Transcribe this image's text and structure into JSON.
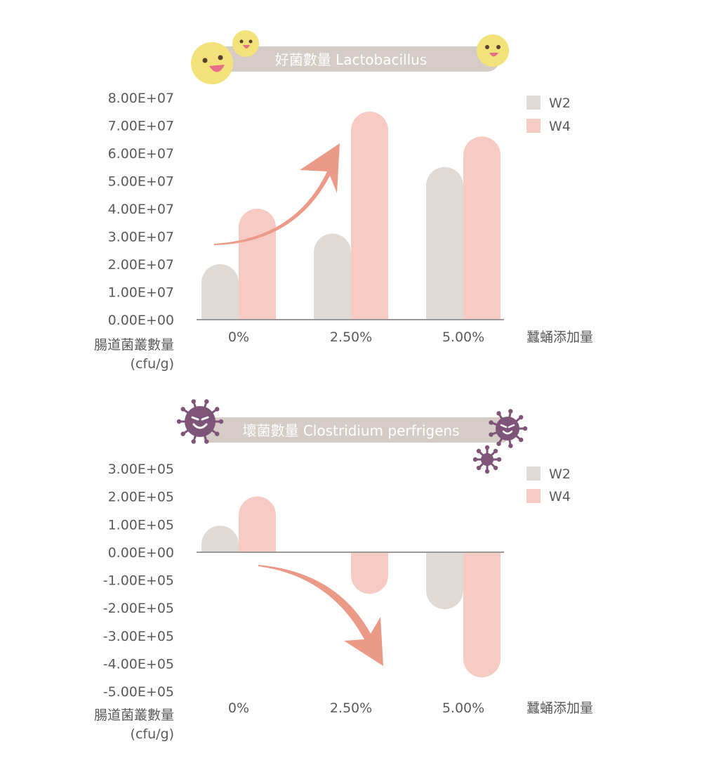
{
  "colors": {
    "w2": "#e0dad7",
    "w4": "#f5cbc3",
    "arrow": "#ec9a88",
    "banner": "#d5cbc7",
    "axis": "#9a9a9a",
    "smiley_face": "#f3e17a",
    "virus": "#7e5578"
  },
  "icons": {
    "good": "smiley-bacteria-icon",
    "bad": "virus-icon"
  },
  "chart_data": [
    {
      "type": "bar",
      "title": "好菌數量 Lactobacillus",
      "categories": [
        "0%",
        "2.50%",
        "5.00%"
      ],
      "xlabel": "蠶蛹添加量",
      "ylabel_line1": "腸道菌叢數量",
      "ylabel_line2": "(cfu/g)",
      "yticks": [
        "8.00E+07",
        "7.00E+07",
        "6.00E+07",
        "5.00E+07",
        "4.00E+07",
        "3.00E+07",
        "2.00E+07",
        "1.00E+07",
        "0.00E+00"
      ],
      "ylim": [
        0,
        80000000
      ],
      "legend_position": "top-right",
      "trend": "up",
      "series": [
        {
          "name": "W2",
          "values": [
            20000000,
            31000000,
            55000000
          ]
        },
        {
          "name": "W4",
          "values": [
            40000000,
            75000000,
            66000000
          ]
        }
      ]
    },
    {
      "type": "bar",
      "title": "壞菌數量 Clostridium perfrigens",
      "categories": [
        "0%",
        "2.50%",
        "5.00%"
      ],
      "xlabel": "蠶蛹添加量",
      "ylabel_line1": "腸道菌叢數量",
      "ylabel_line2": "(cfu/g)",
      "yticks": [
        "3.00E+05",
        "2.00E+05",
        "1.00E+05",
        "0.00E+00",
        "-1.00E+05",
        "-2.00E+05",
        "-3.00E+05",
        "-4.00E+05",
        "-5.00E+05"
      ],
      "ylim": [
        -500000,
        300000
      ],
      "legend_position": "top-right",
      "trend": "down",
      "series": [
        {
          "name": "W2",
          "values": [
            95000,
            0,
            -205000
          ]
        },
        {
          "name": "W4",
          "values": [
            200000,
            -150000,
            -450000
          ]
        }
      ]
    }
  ]
}
